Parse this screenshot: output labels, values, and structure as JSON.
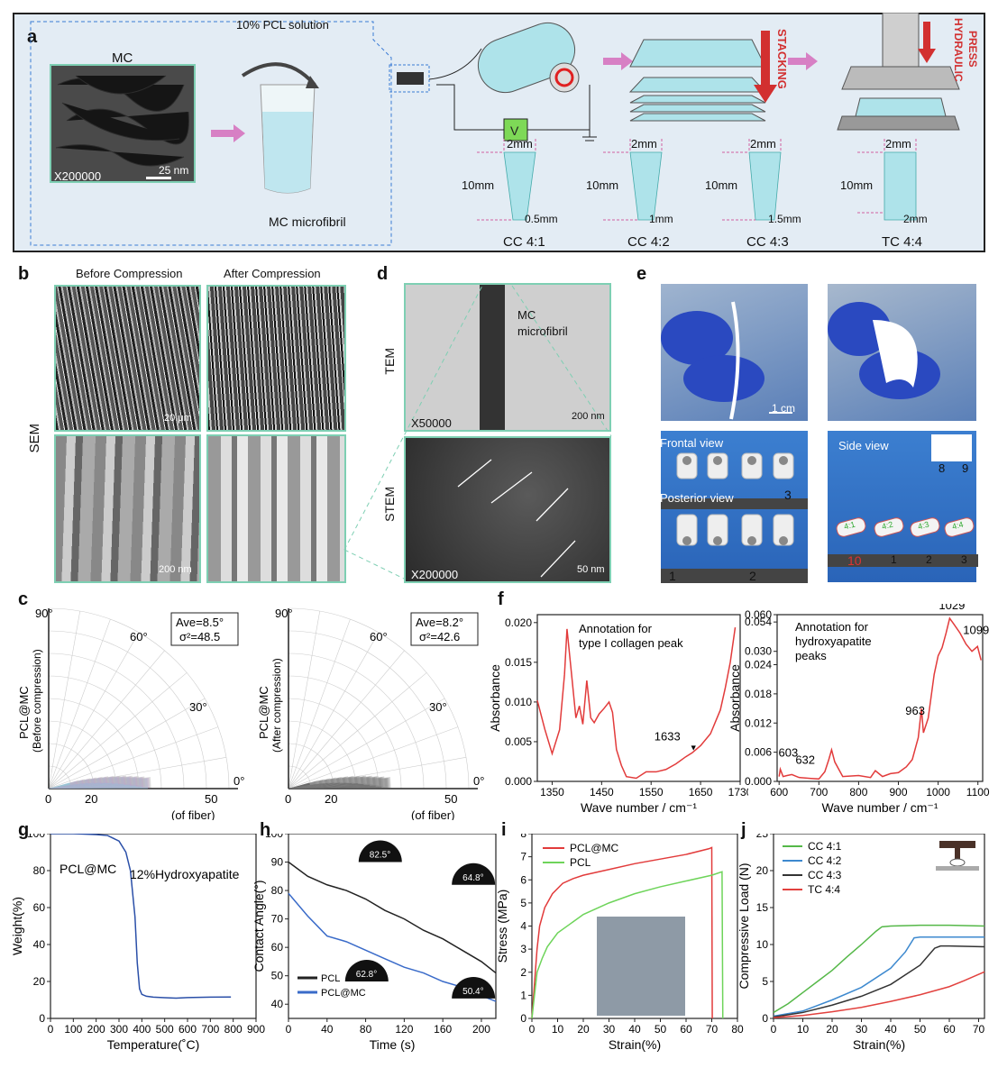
{
  "panel_labels": {
    "a": "a",
    "b": "b",
    "c": "c",
    "d": "d",
    "e": "e",
    "f": "f",
    "g": "g",
    "h": "h",
    "i": "i",
    "j": "j"
  },
  "panel_a": {
    "mc_label": "MC",
    "magnification": "X200000",
    "scale": "25 nm",
    "solution_label": "10% PCL solution",
    "microfibril_label": "MC microfibril",
    "stacking_label": "STACKING",
    "press_label": [
      "HYDRAULIC",
      "PRESS"
    ],
    "voltage_symbol": "V",
    "samples": [
      {
        "name": "CC 4:1",
        "top": "2mm",
        "len": "10mm",
        "bottom": "0.5mm"
      },
      {
        "name": "CC 4:2",
        "top": "2mm",
        "len": "10mm",
        "bottom": "1mm"
      },
      {
        "name": "CC 4:3",
        "top": "2mm",
        "len": "10mm",
        "bottom": "1.5mm"
      },
      {
        "name": "TC 4:4",
        "top": "2mm",
        "len": "10mm",
        "bottom": "2mm"
      }
    ]
  },
  "panel_b": {
    "before": "Before Compression",
    "after": "After Compression",
    "sem": "SEM",
    "scale_top": "20 μm",
    "scale_bottom": "200 nm"
  },
  "panel_d": {
    "tem": "TEM",
    "stem": "STEM",
    "mc": "MC",
    "microfibril": "microfibril",
    "mag_top": "X50000",
    "scale_top": "200 nm",
    "mag_bottom": "X200000",
    "scale_bottom": "50 nm"
  },
  "panel_e": {
    "scale": "1 cm",
    "frontal": "Frontal view",
    "posterior": "Posterior view",
    "side": "Side view",
    "ruler_a": [
      "1",
      "2",
      "3"
    ],
    "ruler_b": [
      "10",
      "1",
      "2",
      "3"
    ],
    "ruler_c": [
      "8",
      "9"
    ],
    "tube_labels": [
      "4:1",
      "4:2",
      "4:3",
      "4:4"
    ]
  },
  "chart_data": [
    {
      "id": "c-left",
      "type": "polar-histogram",
      "ylabel": "PCL@MC",
      "ylabel2": "(Before compression)",
      "xlabel": "(of fiber)",
      "ticks_r": [
        "0",
        "20",
        "50"
      ],
      "ticks_angle": [
        "90°",
        "60°",
        "30°",
        "0°"
      ],
      "ave": "Ave=8.5°",
      "var": "σ²=48.5"
    },
    {
      "id": "c-right",
      "type": "polar-histogram",
      "ylabel": "PCL@MC",
      "ylabel2": "(After compression)",
      "xlabel": "(of fiber)",
      "ticks_r": [
        "0",
        "20",
        "50"
      ],
      "ticks_angle": [
        "90°",
        "60°",
        "30°",
        "0°"
      ],
      "ave": "Ave=8.2°",
      "var": "σ²=42.6"
    },
    {
      "id": "f-left",
      "type": "line",
      "title": "Annotation for",
      "title2": "type I collagen peak",
      "xlabel": "Wave number / cm⁻¹",
      "ylabel": "Absorbance",
      "xticks": [
        "1350",
        "1450",
        "1550",
        "1650",
        "1730"
      ],
      "yticks": [
        "0.000",
        "0.005",
        "0.010",
        "0.015",
        "0.020"
      ],
      "peak": "1633",
      "x": [
        1320,
        1335,
        1350,
        1365,
        1375,
        1380,
        1390,
        1398,
        1405,
        1412,
        1420,
        1428,
        1435,
        1445,
        1455,
        1465,
        1472,
        1480,
        1490,
        1500,
        1520,
        1540,
        1560,
        1580,
        1600,
        1620,
        1633,
        1650,
        1670,
        1690,
        1700,
        1710,
        1720
      ],
      "y": [
        0.0102,
        0.0066,
        0.0035,
        0.0065,
        0.0135,
        0.0192,
        0.013,
        0.008,
        0.0095,
        0.0072,
        0.0127,
        0.008,
        0.0074,
        0.0085,
        0.0092,
        0.01,
        0.0087,
        0.004,
        0.002,
        0.0006,
        0.0004,
        0.0012,
        0.0012,
        0.0015,
        0.0022,
        0.0031,
        0.0036,
        0.0045,
        0.006,
        0.009,
        0.0118,
        0.015,
        0.0194
      ]
    },
    {
      "id": "f-right",
      "type": "line",
      "title": "Annotation for",
      "title2": "hydroxyapatite",
      "title3": "peaks",
      "xlabel": "Wave number / cm⁻¹",
      "ylabel": "Absorbance",
      "xticks": [
        "600",
        "700",
        "800",
        "900",
        "1000",
        "1100"
      ],
      "yticks": [
        "0.000",
        "0.006",
        "0.012",
        "0.018",
        "0.024",
        "0.030",
        "0.054",
        "0.060"
      ],
      "peaks": [
        "603",
        "632",
        "963",
        "1029",
        "1099"
      ],
      "x": [
        600,
        603,
        610,
        620,
        632,
        650,
        680,
        700,
        715,
        725,
        732,
        740,
        760,
        800,
        830,
        842,
        860,
        880,
        900,
        920,
        935,
        950,
        958,
        963,
        975,
        990,
        1000,
        1010,
        1020,
        1029,
        1040,
        1055,
        1070,
        1085,
        1099,
        1108
      ],
      "y": [
        0.001,
        0.0025,
        0.001,
        0.0012,
        0.0014,
        0.0008,
        0.0006,
        0.0005,
        0.002,
        0.0045,
        0.0065,
        0.004,
        0.001,
        0.0012,
        0.0008,
        0.0022,
        0.001,
        0.0016,
        0.0018,
        0.003,
        0.0045,
        0.009,
        0.015,
        0.01,
        0.013,
        0.022,
        0.028,
        0.033,
        0.045,
        0.057,
        0.052,
        0.045,
        0.036,
        0.03,
        0.034,
        0.026
      ]
    },
    {
      "id": "g",
      "type": "line",
      "xlabel": "Temperature(˚C)",
      "ylabel": "Weight(%)",
      "legend": "PCL@MC",
      "annot": "12%Hydroxyapatite",
      "xticks": [
        "0",
        "100",
        "200",
        "300",
        "400",
        "500",
        "600",
        "700",
        "800",
        "900"
      ],
      "yticks": [
        "0",
        "20",
        "40",
        "60",
        "80",
        "100"
      ],
      "x": [
        0,
        100,
        200,
        250,
        300,
        330,
        350,
        370,
        380,
        390,
        400,
        420,
        450,
        500,
        550,
        600,
        700,
        790
      ],
      "y": [
        100,
        100,
        99.5,
        99,
        96,
        90,
        80,
        55,
        30,
        16,
        13,
        12,
        11.5,
        11.2,
        11,
        11.3,
        11.5,
        11.6
      ]
    },
    {
      "id": "h",
      "type": "line",
      "xlabel": "Time (s)",
      "ylabel": "Contact Angle(°)",
      "xticks": [
        "0",
        "40",
        "80",
        "120",
        "160",
        "200"
      ],
      "yticks": [
        "40",
        "50",
        "60",
        "70",
        "80",
        "90",
        "100"
      ],
      "angles": [
        "82.5°",
        "64.8°",
        "62.8°",
        "50.4°"
      ],
      "series": [
        {
          "name": "PCL",
          "color": "#222222",
          "x": [
            0,
            20,
            40,
            60,
            80,
            100,
            120,
            140,
            160,
            180,
            200,
            215
          ],
          "y": [
            90,
            85,
            82,
            80,
            77,
            73,
            70,
            66,
            63,
            59,
            55,
            51
          ]
        },
        {
          "name": "PCL@MC",
          "color": "#3a6bc9",
          "x": [
            0,
            20,
            40,
            60,
            80,
            100,
            120,
            140,
            160,
            180,
            200,
            215
          ],
          "y": [
            79,
            71,
            64,
            62,
            59,
            56,
            53,
            51,
            48,
            46,
            43,
            41
          ]
        }
      ]
    },
    {
      "id": "i",
      "type": "line",
      "xlabel": "Strain(%)",
      "ylabel": "Stress (MPa)",
      "xticks": [
        "0",
        "10",
        "20",
        "30",
        "40",
        "50",
        "60",
        "70",
        "80"
      ],
      "yticks": [
        "0",
        "1",
        "2",
        "3",
        "4",
        "5",
        "6",
        "7",
        "8"
      ],
      "series": [
        {
          "name": "PCL@MC",
          "color": "#e23b3b",
          "x": [
            0,
            1,
            2,
            3,
            5,
            8,
            12,
            16,
            20,
            30,
            40,
            50,
            60,
            69,
            70,
            70.2
          ],
          "y": [
            0,
            1.5,
            3,
            4,
            4.8,
            5.4,
            5.85,
            6.05,
            6.2,
            6.45,
            6.7,
            6.9,
            7.1,
            7.35,
            7.4,
            0
          ]
        },
        {
          "name": "PCL",
          "color": "#6ed45a",
          "x": [
            0,
            1,
            2,
            4,
            6,
            10,
            15,
            20,
            30,
            40,
            50,
            60,
            70,
            74,
            74.3
          ],
          "y": [
            0,
            1,
            2,
            2.6,
            3.1,
            3.7,
            4.1,
            4.5,
            5,
            5.4,
            5.7,
            5.95,
            6.2,
            6.35,
            0
          ]
        }
      ]
    },
    {
      "id": "j",
      "type": "line",
      "xlabel": "Strain(%)",
      "ylabel": "Compressive Load (N)",
      "xticks": [
        "0",
        "10",
        "20",
        "30",
        "40",
        "50",
        "60",
        "70"
      ],
      "yticks": [
        "0",
        "5",
        "10",
        "15",
        "20",
        "25"
      ],
      "series": [
        {
          "name": "CC 4:1",
          "color": "#55b848",
          "x": [
            0,
            5,
            10,
            15,
            20,
            25,
            30,
            35,
            37,
            40,
            50,
            60,
            72
          ],
          "y": [
            0.8,
            2,
            3.5,
            5,
            6.5,
            8.3,
            10,
            11.8,
            12.4,
            12.5,
            12.6,
            12.6,
            12.5
          ]
        },
        {
          "name": "CC 4:2",
          "color": "#3d89cf",
          "x": [
            0,
            10,
            20,
            30,
            40,
            45,
            48,
            50,
            60,
            72
          ],
          "y": [
            0.3,
            1,
            2.5,
            4.2,
            6.8,
            9,
            10.9,
            11,
            11,
            11
          ]
        },
        {
          "name": "CC 4:3",
          "color": "#333333",
          "x": [
            0,
            10,
            20,
            30,
            40,
            50,
            55,
            57,
            60,
            72
          ],
          "y": [
            0.2,
            0.8,
            1.8,
            3,
            4.6,
            7.2,
            9.5,
            9.8,
            9.8,
            9.7
          ]
        },
        {
          "name": "TC 4:4",
          "color": "#e2413e",
          "x": [
            0,
            10,
            20,
            30,
            40,
            50,
            60,
            65,
            72
          ],
          "y": [
            0.1,
            0.4,
            0.9,
            1.5,
            2.3,
            3.2,
            4.3,
            5.1,
            6.3
          ]
        }
      ]
    }
  ]
}
